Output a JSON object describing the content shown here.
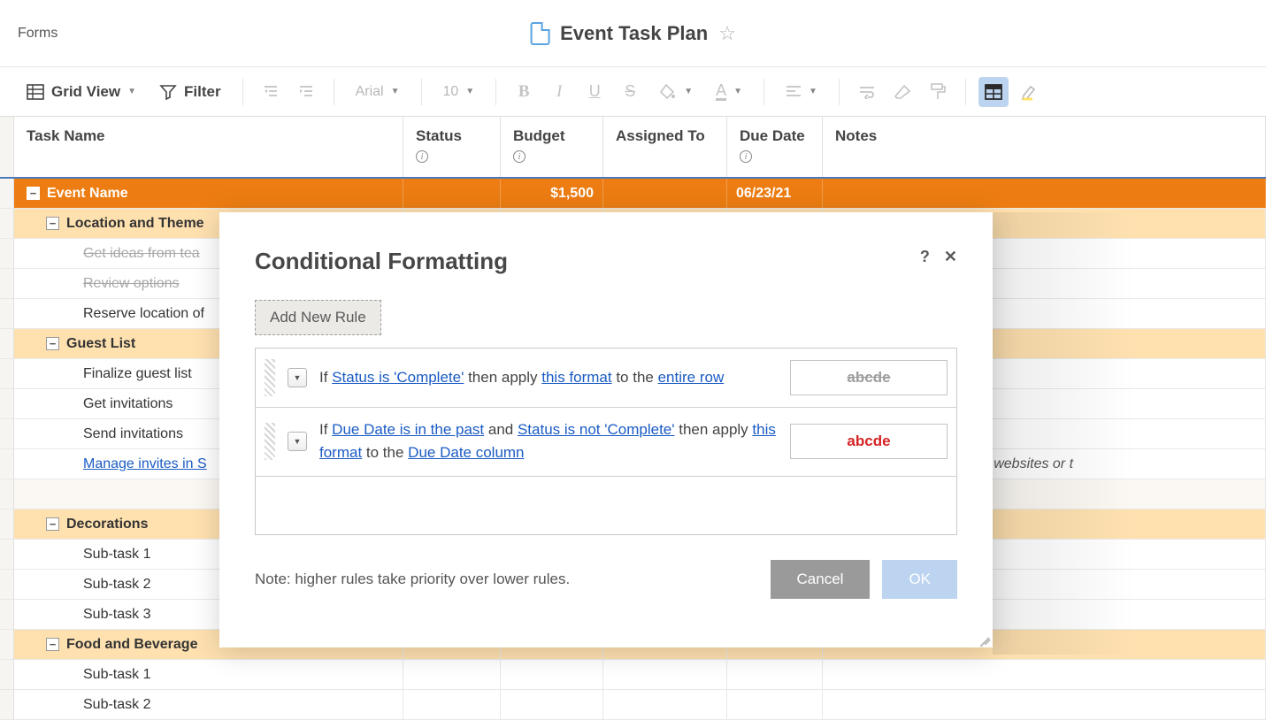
{
  "topbar": {
    "forms_label": "Forms",
    "title": "Event Task Plan"
  },
  "toolbar": {
    "view_label": "Grid View",
    "filter_label": "Filter",
    "font_name": "Arial",
    "font_size": "10"
  },
  "columns": {
    "task": "Task Name",
    "status": "Status",
    "budget": "Budget",
    "assigned": "Assigned To",
    "due": "Due Date",
    "notes": "Notes"
  },
  "rows": [
    {
      "level": 0,
      "collapsible": true,
      "text": "Event Name",
      "budget": "$1,500",
      "due": "06/23/21"
    },
    {
      "level": 1,
      "collapsible": true,
      "text": "Location and Theme"
    },
    {
      "level": 2,
      "text": "Get ideas from tea",
      "strike": true
    },
    {
      "level": 2,
      "text": "Review options",
      "strike": true
    },
    {
      "level": 2,
      "text": "Reserve location of"
    },
    {
      "level": 1,
      "collapsible": true,
      "text": "Guest List"
    },
    {
      "level": 2,
      "text": "Finalize guest list"
    },
    {
      "level": 2,
      "text": "Get invitations"
    },
    {
      "level": 2,
      "text": "Send invitations"
    },
    {
      "level": 2,
      "text": "Manage invites in S",
      "link": true,
      "notes": "hyperlink to other sheets, websites or t"
    },
    {
      "level": -1
    },
    {
      "level": 1,
      "collapsible": true,
      "text": "Decorations"
    },
    {
      "level": 2,
      "text": "Sub-task 1"
    },
    {
      "level": 2,
      "text": "Sub-task 2"
    },
    {
      "level": 2,
      "text": "Sub-task 3"
    },
    {
      "level": 1,
      "collapsible": true,
      "text": "Food and Beverage"
    },
    {
      "level": 2,
      "text": "Sub-task 1"
    },
    {
      "level": 2,
      "text": "Sub-task 2"
    }
  ],
  "dialog": {
    "title": "Conditional Formatting",
    "add_rule": "Add New Rule",
    "rule1": {
      "if": "If ",
      "cond": "Status is 'Complete'",
      "then": " then apply ",
      "fmt": "this format",
      "to": " to the ",
      "scope": "entire row",
      "preview": "abcde"
    },
    "rule2": {
      "if": "If ",
      "cond1": "Due Date is in the past",
      "and": " and ",
      "cond2": "Status is not 'Complete'",
      "then": " then apply ",
      "fmt": "this format",
      "to": " to the ",
      "scope": "Due Date column",
      "preview": "abcde"
    },
    "note": "Note: higher rules take priority over lower rules.",
    "cancel": "Cancel",
    "ok": "OK"
  },
  "colors": {
    "accent_orange": "#ed7d12",
    "accent_orange_light": "#ffe1b0",
    "link_blue": "#1a5bc4",
    "header_underline": "#4b7bbd",
    "toolbar_highlight": "#bcd4f0",
    "preview_red": "#d62424"
  }
}
